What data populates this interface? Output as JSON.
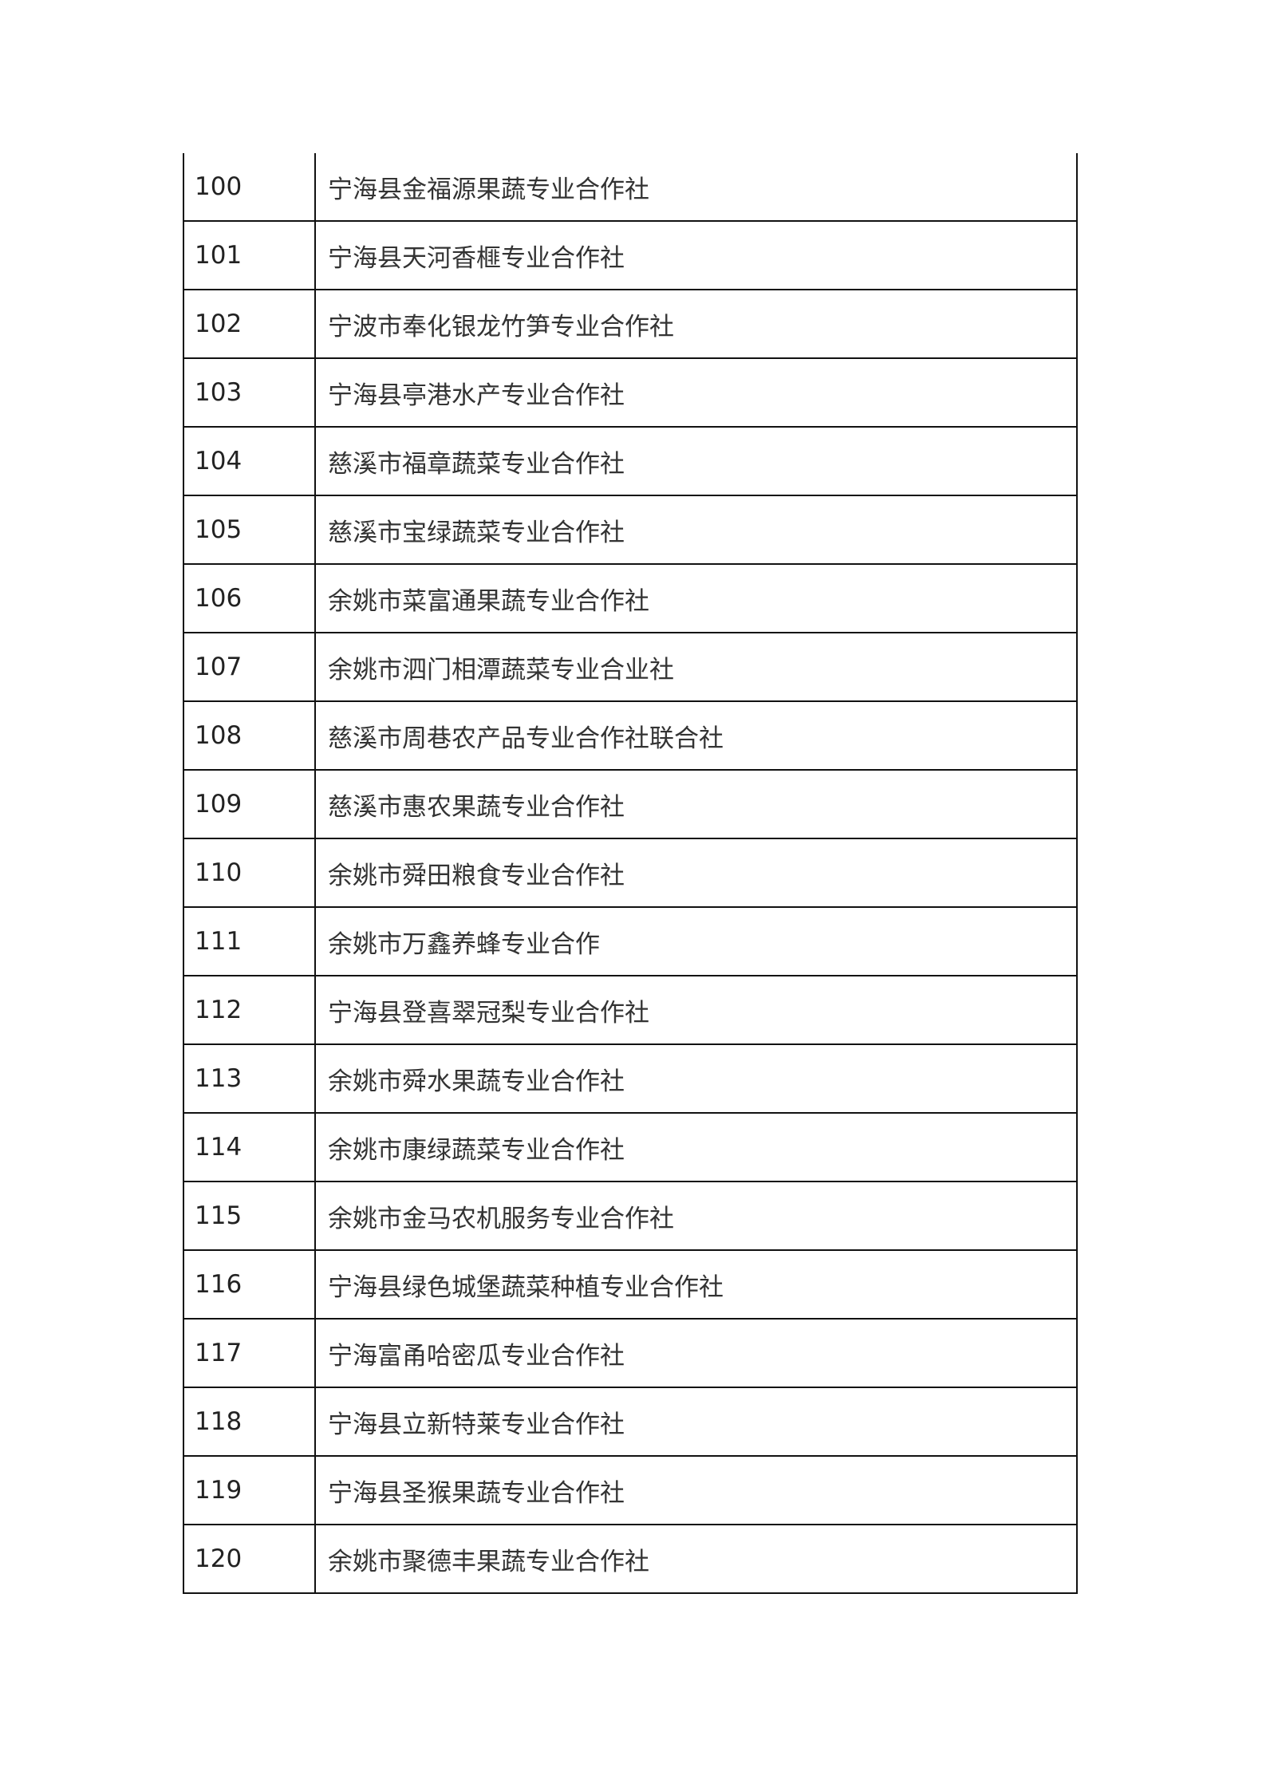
{
  "rows": [
    {
      "no": "100",
      "name": "宁海县金福源果蔬专业合作社"
    },
    {
      "no": "101",
      "name": "宁海县天河香榧专业合作社"
    },
    {
      "no": "102",
      "name": "宁波市奉化银龙竹笋专业合作社"
    },
    {
      "no": "103",
      "name": "宁海县亭港水产专业合作社"
    },
    {
      "no": "104",
      "name": "慈溪市福章蔬菜专业合作社"
    },
    {
      "no": "105",
      "name": "慈溪市宝绿蔬菜专业合作社"
    },
    {
      "no": "106",
      "name": "余姚市菜富通果蔬专业合作社"
    },
    {
      "no": "107",
      "name": "余姚市泗门相潭蔬菜专业合业社"
    },
    {
      "no": "108",
      "name": "慈溪市周巷农产品专业合作社联合社"
    },
    {
      "no": "109",
      "name": "慈溪市惠农果蔬专业合作社"
    },
    {
      "no": "110",
      "name": "余姚市舜田粮食专业合作社"
    },
    {
      "no": "111",
      "name": "余姚市万鑫养蜂专业合作"
    },
    {
      "no": "112",
      "name": "宁海县登喜翠冠梨专业合作社"
    },
    {
      "no": "113",
      "name": "余姚市舜水果蔬专业合作社"
    },
    {
      "no": "114",
      "name": "余姚市康绿蔬菜专业合作社"
    },
    {
      "no": "115",
      "name": "余姚市金马农机服务专业合作社"
    },
    {
      "no": "116",
      "name": "宁海县绿色城堡蔬菜种植专业合作社"
    },
    {
      "no": "117",
      "name": "宁海富甬哈密瓜专业合作社"
    },
    {
      "no": "118",
      "name": "宁海县立新特莱专业合作社"
    },
    {
      "no": "119",
      "name": "宁海县圣猴果蔬专业合作社"
    },
    {
      "no": "120",
      "name": "余姚市聚德丰果蔬专业合作社"
    }
  ]
}
